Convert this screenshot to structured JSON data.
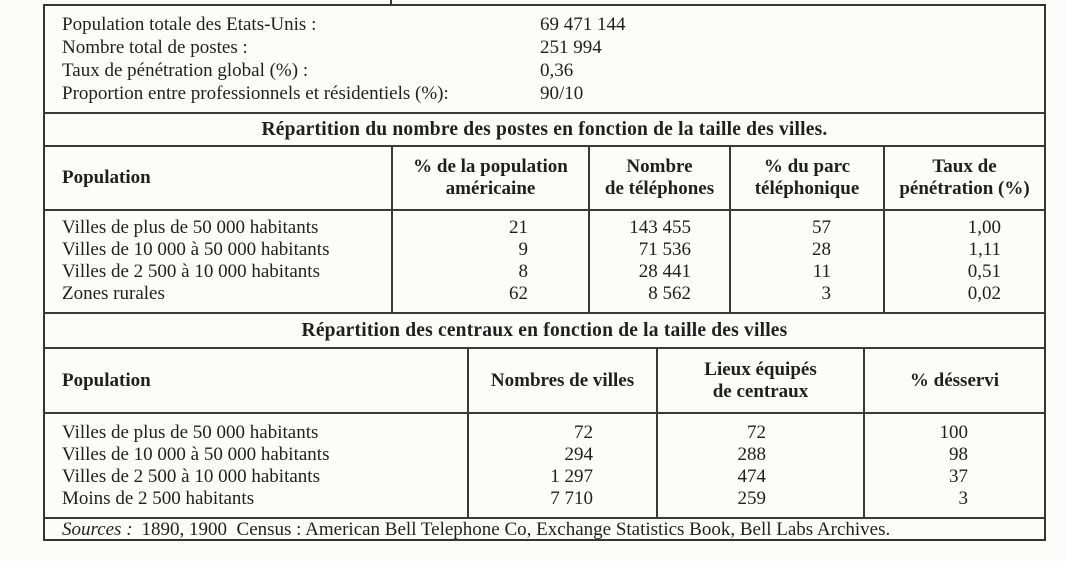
{
  "summary": {
    "items": [
      {
        "label": "Population totale des Etats-Unis :",
        "value": "69 471 144"
      },
      {
        "label": "Nombre total de postes :",
        "value": "251 994"
      },
      {
        "label": "Taux de pénétration global (%) :",
        "value": "0,36"
      },
      {
        "label": "Proportion entre professionnels et résidentiels (%):",
        "value": "90/10"
      }
    ]
  },
  "table_postes": {
    "title": "Répartition du nombre des postes en fonction de la taille des villes.",
    "headers": [
      "Population",
      "% de la population\naméricaine",
      "Nombre\nde téléphones",
      "% du parc\ntéléphonique",
      "Taux de\npénétration (%)"
    ],
    "rows": [
      [
        "Villes de plus de 50 000 habitants",
        "21",
        "143 455",
        "57",
        "1,00"
      ],
      [
        "Villes de 10 000 à 50 000 habitants",
        "9",
        "71 536",
        "28",
        "1,11"
      ],
      [
        "Villes de 2 500 à 10 000 habitants",
        "8",
        "28 441",
        "11",
        "0,51"
      ],
      [
        "Zones rurales",
        "62",
        "8 562",
        "3",
        "0,02"
      ]
    ]
  },
  "table_centraux": {
    "title": "Répartition des centraux en fonction de la taille des villes",
    "headers": [
      "Population",
      "Nombres de villes",
      "Lieux équipés\nde centraux",
      "% désservi"
    ],
    "rows": [
      [
        "Villes de plus de 50 000 habitants",
        "72",
        "72",
        "100"
      ],
      [
        "Villes de 10 000 à 50 000 habitants",
        "294",
        "288",
        "98"
      ],
      [
        "Villes de 2 500 à 10 000 habitants",
        "1 297",
        "474",
        "37"
      ],
      [
        "Moins de 2 500 habitants",
        "7 710",
        "259",
        "3"
      ]
    ]
  },
  "sources": {
    "label": "Sources :",
    "text": "1890, 1900  Census : American Bell Telephone Co, Exchange Statistics Book, Bell Labs Archives."
  }
}
